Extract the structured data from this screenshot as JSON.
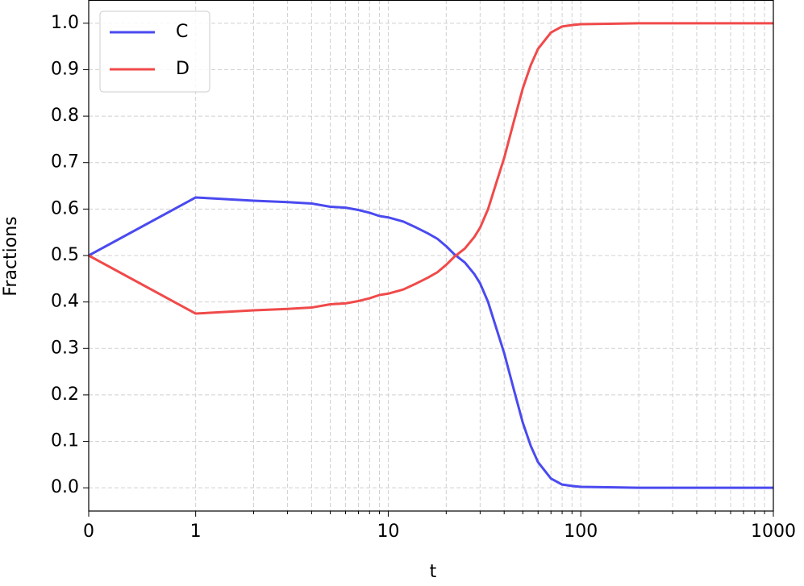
{
  "chart_data": {
    "type": "line",
    "x": [
      0,
      1,
      2,
      3,
      4,
      5,
      6,
      7,
      8,
      9,
      10,
      12,
      14,
      16,
      18,
      20,
      22,
      25,
      28,
      30,
      33,
      36,
      40,
      45,
      50,
      55,
      60,
      70,
      80,
      90,
      100,
      150,
      200,
      500,
      1000
    ],
    "series": [
      {
        "name": "C",
        "color": "#4a4af0",
        "values": [
          0.5,
          0.625,
          0.618,
          0.615,
          0.612,
          0.605,
          0.603,
          0.598,
          0.592,
          0.585,
          0.582,
          0.573,
          0.56,
          0.548,
          0.536,
          0.52,
          0.503,
          0.485,
          0.46,
          0.44,
          0.4,
          0.35,
          0.29,
          0.21,
          0.14,
          0.09,
          0.055,
          0.02,
          0.007,
          0.004,
          0.002,
          0.001,
          0,
          0,
          0
        ]
      },
      {
        "name": "D",
        "color": "#f04a4a",
        "values": [
          0.5,
          0.375,
          0.382,
          0.385,
          0.388,
          0.395,
          0.397,
          0.402,
          0.408,
          0.415,
          0.418,
          0.427,
          0.44,
          0.452,
          0.464,
          0.48,
          0.497,
          0.515,
          0.54,
          0.56,
          0.6,
          0.65,
          0.71,
          0.79,
          0.86,
          0.91,
          0.945,
          0.98,
          0.993,
          0.996,
          0.998,
          0.999,
          1,
          1,
          1
        ]
      }
    ],
    "xlabel": "t",
    "ylabel": "Fractions",
    "xscale": "symlog",
    "linthresh": 1,
    "linscale": 0.5,
    "xlim": [
      0,
      1000
    ],
    "xticks": [
      0,
      1,
      10,
      100,
      1000
    ],
    "xminorticks": [
      2,
      3,
      4,
      5,
      6,
      7,
      8,
      9,
      20,
      30,
      40,
      50,
      60,
      70,
      80,
      90,
      200,
      300,
      400,
      500,
      600,
      700,
      800,
      900
    ],
    "ylim": [
      -0.05,
      1.05
    ],
    "yticks": [
      {
        "value": 0,
        "label": "0.0"
      },
      {
        "value": 0.1,
        "label": "0.1"
      },
      {
        "value": 0.2,
        "label": "0.2"
      },
      {
        "value": 0.3,
        "label": "0.3"
      },
      {
        "value": 0.4,
        "label": "0.4"
      },
      {
        "value": 0.5,
        "label": "0.5"
      },
      {
        "value": 0.6,
        "label": "0.6"
      },
      {
        "value": 0.7,
        "label": "0.7"
      },
      {
        "value": 0.8,
        "label": "0.8"
      },
      {
        "value": 0.9,
        "label": "0.9"
      },
      {
        "value": 1,
        "label": "1.0"
      }
    ],
    "grid": true,
    "legend": "upper left"
  }
}
